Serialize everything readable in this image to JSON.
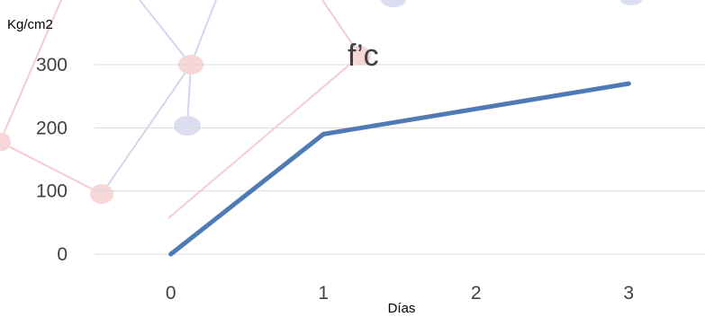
{
  "chart_data": {
    "type": "line",
    "ylabel": "Kg/cm2",
    "xlabel": "Días",
    "series_label": "f’c",
    "x": [
      0,
      1,
      3
    ],
    "x_ticks": [
      0,
      1,
      2,
      3
    ],
    "y_ticks": [
      0,
      100,
      200,
      300
    ],
    "ylim": [
      0,
      300
    ],
    "xlim": [
      -0.5,
      3.5
    ],
    "grid": true,
    "series": [
      {
        "values": [
          0,
          190,
          270
        ],
        "color": "#4e7ab5"
      }
    ],
    "colors": {
      "line": "#4e7ab5",
      "grid": "#d9d9d9",
      "tick_text": "#404040",
      "decor_pink": "#f2b8bc",
      "decor_lavender": "#c3c7e6"
    }
  }
}
